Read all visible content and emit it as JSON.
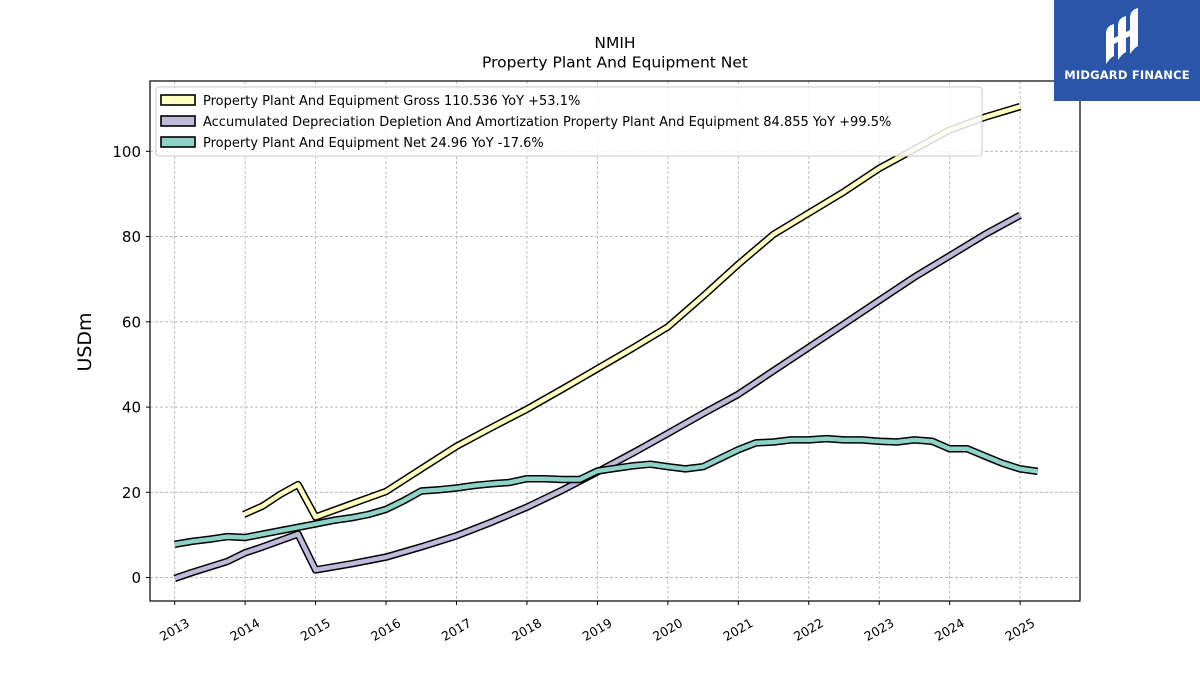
{
  "chart_data": {
    "type": "line",
    "title": "NMIH",
    "subtitle": "Property Plant And Equipment Net",
    "ylabel": "USDm",
    "xlabel": "",
    "xlim": [
      2012.65,
      2025.85
    ],
    "ylim": [
      -5.5,
      116.5
    ],
    "xticks": [
      2013,
      2014,
      2015,
      2016,
      2017,
      2018,
      2019,
      2020,
      2021,
      2022,
      2023,
      2024,
      2025
    ],
    "xtick_labels": [
      "2013",
      "2014",
      "2015",
      "2016",
      "2017",
      "2018",
      "2019",
      "2020",
      "2021",
      "2022",
      "2023",
      "2024",
      "2025"
    ],
    "yticks": [
      0,
      20,
      40,
      60,
      80,
      100
    ],
    "ytick_labels": [
      "0",
      "20",
      "40",
      "60",
      "80",
      "100"
    ],
    "grid": true,
    "legend_position": "top-left",
    "series": [
      {
        "name": "Property Plant And Equipment Gross",
        "legend_label": "Property Plant And Equipment Gross  110.536 YoY +53.1%",
        "color": "#ffffbf",
        "x": [
          2013.98,
          2014.25,
          2014.5,
          2014.75,
          2015.0,
          2015.5,
          2016.0,
          2016.5,
          2017.0,
          2017.5,
          2018.0,
          2018.5,
          2019.0,
          2019.5,
          2020.0,
          2020.5,
          2021.0,
          2021.5,
          2022.0,
          2022.5,
          2023.0,
          2023.5,
          2024.0,
          2024.5,
          2025.0
        ],
        "y": [
          14.8,
          16.8,
          19.5,
          21.8,
          14.2,
          17.2,
          20.2,
          25.5,
          30.8,
          35.2,
          39.5,
          44.2,
          49.0,
          53.8,
          58.8,
          66.0,
          73.5,
          80.5,
          85.5,
          90.5,
          96.0,
          100.5,
          105.0,
          108.0,
          110.5
        ]
      },
      {
        "name": "Accumulated Depreciation Depletion And Amortization Property Plant And Equipment",
        "legend_label": "Accumulated Depreciation Depletion And Amortization Property Plant And Equipment  84.855 YoY +99.5%",
        "color": "#bebada",
        "x": [
          2013.0,
          2013.25,
          2013.5,
          2013.75,
          2014.0,
          2014.25,
          2014.5,
          2014.75,
          2015.0,
          2015.5,
          2016.0,
          2016.5,
          2017.0,
          2017.5,
          2018.0,
          2018.5,
          2019.0,
          2019.5,
          2020.0,
          2020.5,
          2021.0,
          2021.5,
          2022.0,
          2022.5,
          2023.0,
          2023.5,
          2024.0,
          2024.5,
          2025.0
        ],
        "y": [
          -0.2,
          1.2,
          2.5,
          3.8,
          5.8,
          7.2,
          8.7,
          10.2,
          1.8,
          3.2,
          4.8,
          7.2,
          9.8,
          13.0,
          16.5,
          20.5,
          24.8,
          29.2,
          33.8,
          38.5,
          43.0,
          48.5,
          54.0,
          59.5,
          65.0,
          70.5,
          75.5,
          80.5,
          85.0
        ]
      },
      {
        "name": "Property Plant And Equipment Net",
        "legend_label": "Property Plant And Equipment Net  24.96 YoY -17.6%",
        "color": "#8dd3c7",
        "x": [
          2013.0,
          2013.25,
          2013.5,
          2013.75,
          2014.0,
          2014.25,
          2014.5,
          2014.75,
          2015.0,
          2015.25,
          2015.5,
          2015.75,
          2016.0,
          2016.25,
          2016.5,
          2016.75,
          2017.0,
          2017.25,
          2017.5,
          2017.75,
          2018.0,
          2018.25,
          2018.5,
          2018.75,
          2019.0,
          2019.25,
          2019.5,
          2019.75,
          2020.0,
          2020.25,
          2020.5,
          2020.75,
          2021.0,
          2021.25,
          2021.5,
          2021.75,
          2022.0,
          2022.25,
          2022.5,
          2022.75,
          2023.0,
          2023.25,
          2023.5,
          2023.75,
          2024.0,
          2024.25,
          2024.5,
          2024.75,
          2025.0,
          2025.25
        ],
        "y": [
          7.8,
          8.5,
          9.0,
          9.6,
          9.4,
          10.2,
          11.0,
          11.8,
          12.6,
          13.4,
          14.0,
          14.8,
          16.0,
          18.0,
          20.3,
          20.6,
          21.0,
          21.6,
          22.0,
          22.3,
          23.2,
          23.2,
          23.0,
          23.0,
          25.0,
          25.6,
          26.2,
          26.6,
          26.0,
          25.5,
          26.0,
          28.0,
          30.0,
          31.6,
          31.8,
          32.3,
          32.3,
          32.6,
          32.3,
          32.3,
          32.0,
          31.8,
          32.3,
          32.0,
          30.2,
          30.2,
          28.5,
          26.8,
          25.5,
          24.9
        ]
      }
    ]
  },
  "logo": {
    "text": "MIDGARD FINANCE",
    "background": "#2a55a8"
  }
}
